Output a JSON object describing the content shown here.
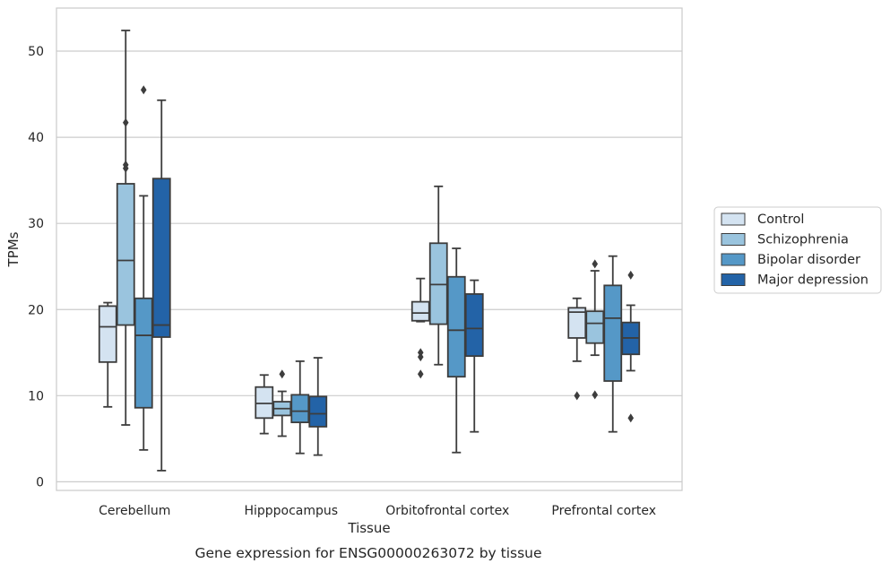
{
  "chart_data": {
    "type": "box",
    "title": "Gene expression for ENSG00000263072 by tissue",
    "xlabel": "Tissue",
    "ylabel": "TPMs",
    "ylim": [
      -1.0,
      55.0
    ],
    "yticks": [
      0,
      10,
      20,
      30,
      40,
      50
    ],
    "grid": "horizontal",
    "legend_position": "right",
    "categories": [
      "Cerebellum",
      "Hipppocampus",
      "Orbitofrontal cortex",
      "Prefrontal cortex"
    ],
    "series": [
      {
        "name": "Control",
        "color": "#d4e3f1",
        "boxes": [
          {
            "whislo": 8.7,
            "q1": 13.9,
            "med": 18.0,
            "q3": 20.4,
            "whishi": 20.8,
            "fliers": []
          },
          {
            "whislo": 5.6,
            "q1": 7.4,
            "med": 9.1,
            "q3": 11.0,
            "whishi": 12.4,
            "fliers": []
          },
          {
            "whislo": 18.6,
            "q1": 18.7,
            "med": 19.6,
            "q3": 20.9,
            "whishi": 23.6,
            "fliers": [
              15.0,
              14.5,
              12.5
            ]
          },
          {
            "whislo": 14.0,
            "q1": 16.7,
            "med": 19.7,
            "q3": 20.2,
            "whishi": 21.3,
            "fliers": [
              10.0
            ]
          }
        ]
      },
      {
        "name": "Schizophrenia",
        "color": "#9ac4de",
        "boxes": [
          {
            "whislo": 6.6,
            "q1": 18.2,
            "med": 25.7,
            "q3": 34.6,
            "whishi": 52.4,
            "fliers": [
              41.7,
              36.8,
              36.4
            ]
          },
          {
            "whislo": 5.3,
            "q1": 7.7,
            "med": 8.5,
            "q3": 9.3,
            "whishi": 10.5,
            "fliers": [
              12.5
            ]
          },
          {
            "whislo": 13.6,
            "q1": 18.3,
            "med": 22.9,
            "q3": 27.7,
            "whishi": 34.3,
            "fliers": []
          },
          {
            "whislo": 14.7,
            "q1": 16.1,
            "med": 18.4,
            "q3": 19.8,
            "whishi": 24.5,
            "fliers": [
              25.3,
              10.1
            ]
          }
        ]
      },
      {
        "name": "Bipolar disorder",
        "color": "#5598c7",
        "boxes": [
          {
            "whislo": 3.7,
            "q1": 8.6,
            "med": 17.0,
            "q3": 21.3,
            "whishi": 33.2,
            "fliers": [
              45.5
            ]
          },
          {
            "whislo": 3.3,
            "q1": 6.9,
            "med": 8.2,
            "q3": 10.1,
            "whishi": 14.0,
            "fliers": []
          },
          {
            "whislo": 3.4,
            "q1": 12.2,
            "med": 17.6,
            "q3": 23.8,
            "whishi": 27.1,
            "fliers": []
          },
          {
            "whislo": 5.8,
            "q1": 11.7,
            "med": 19.0,
            "q3": 22.8,
            "whishi": 26.2,
            "fliers": []
          }
        ]
      },
      {
        "name": "Major depression",
        "color": "#2363a7",
        "boxes": [
          {
            "whislo": 1.3,
            "q1": 16.8,
            "med": 18.2,
            "q3": 35.2,
            "whishi": 44.3,
            "fliers": []
          },
          {
            "whislo": 3.1,
            "q1": 6.4,
            "med": 7.9,
            "q3": 9.9,
            "whishi": 14.4,
            "fliers": []
          },
          {
            "whislo": 5.8,
            "q1": 14.6,
            "med": 17.8,
            "q3": 21.8,
            "whishi": 23.4,
            "fliers": []
          },
          {
            "whislo": 12.9,
            "q1": 14.8,
            "med": 16.7,
            "q3": 18.5,
            "whishi": 20.5,
            "fliers": [
              24.0,
              7.4
            ]
          }
        ]
      }
    ]
  }
}
